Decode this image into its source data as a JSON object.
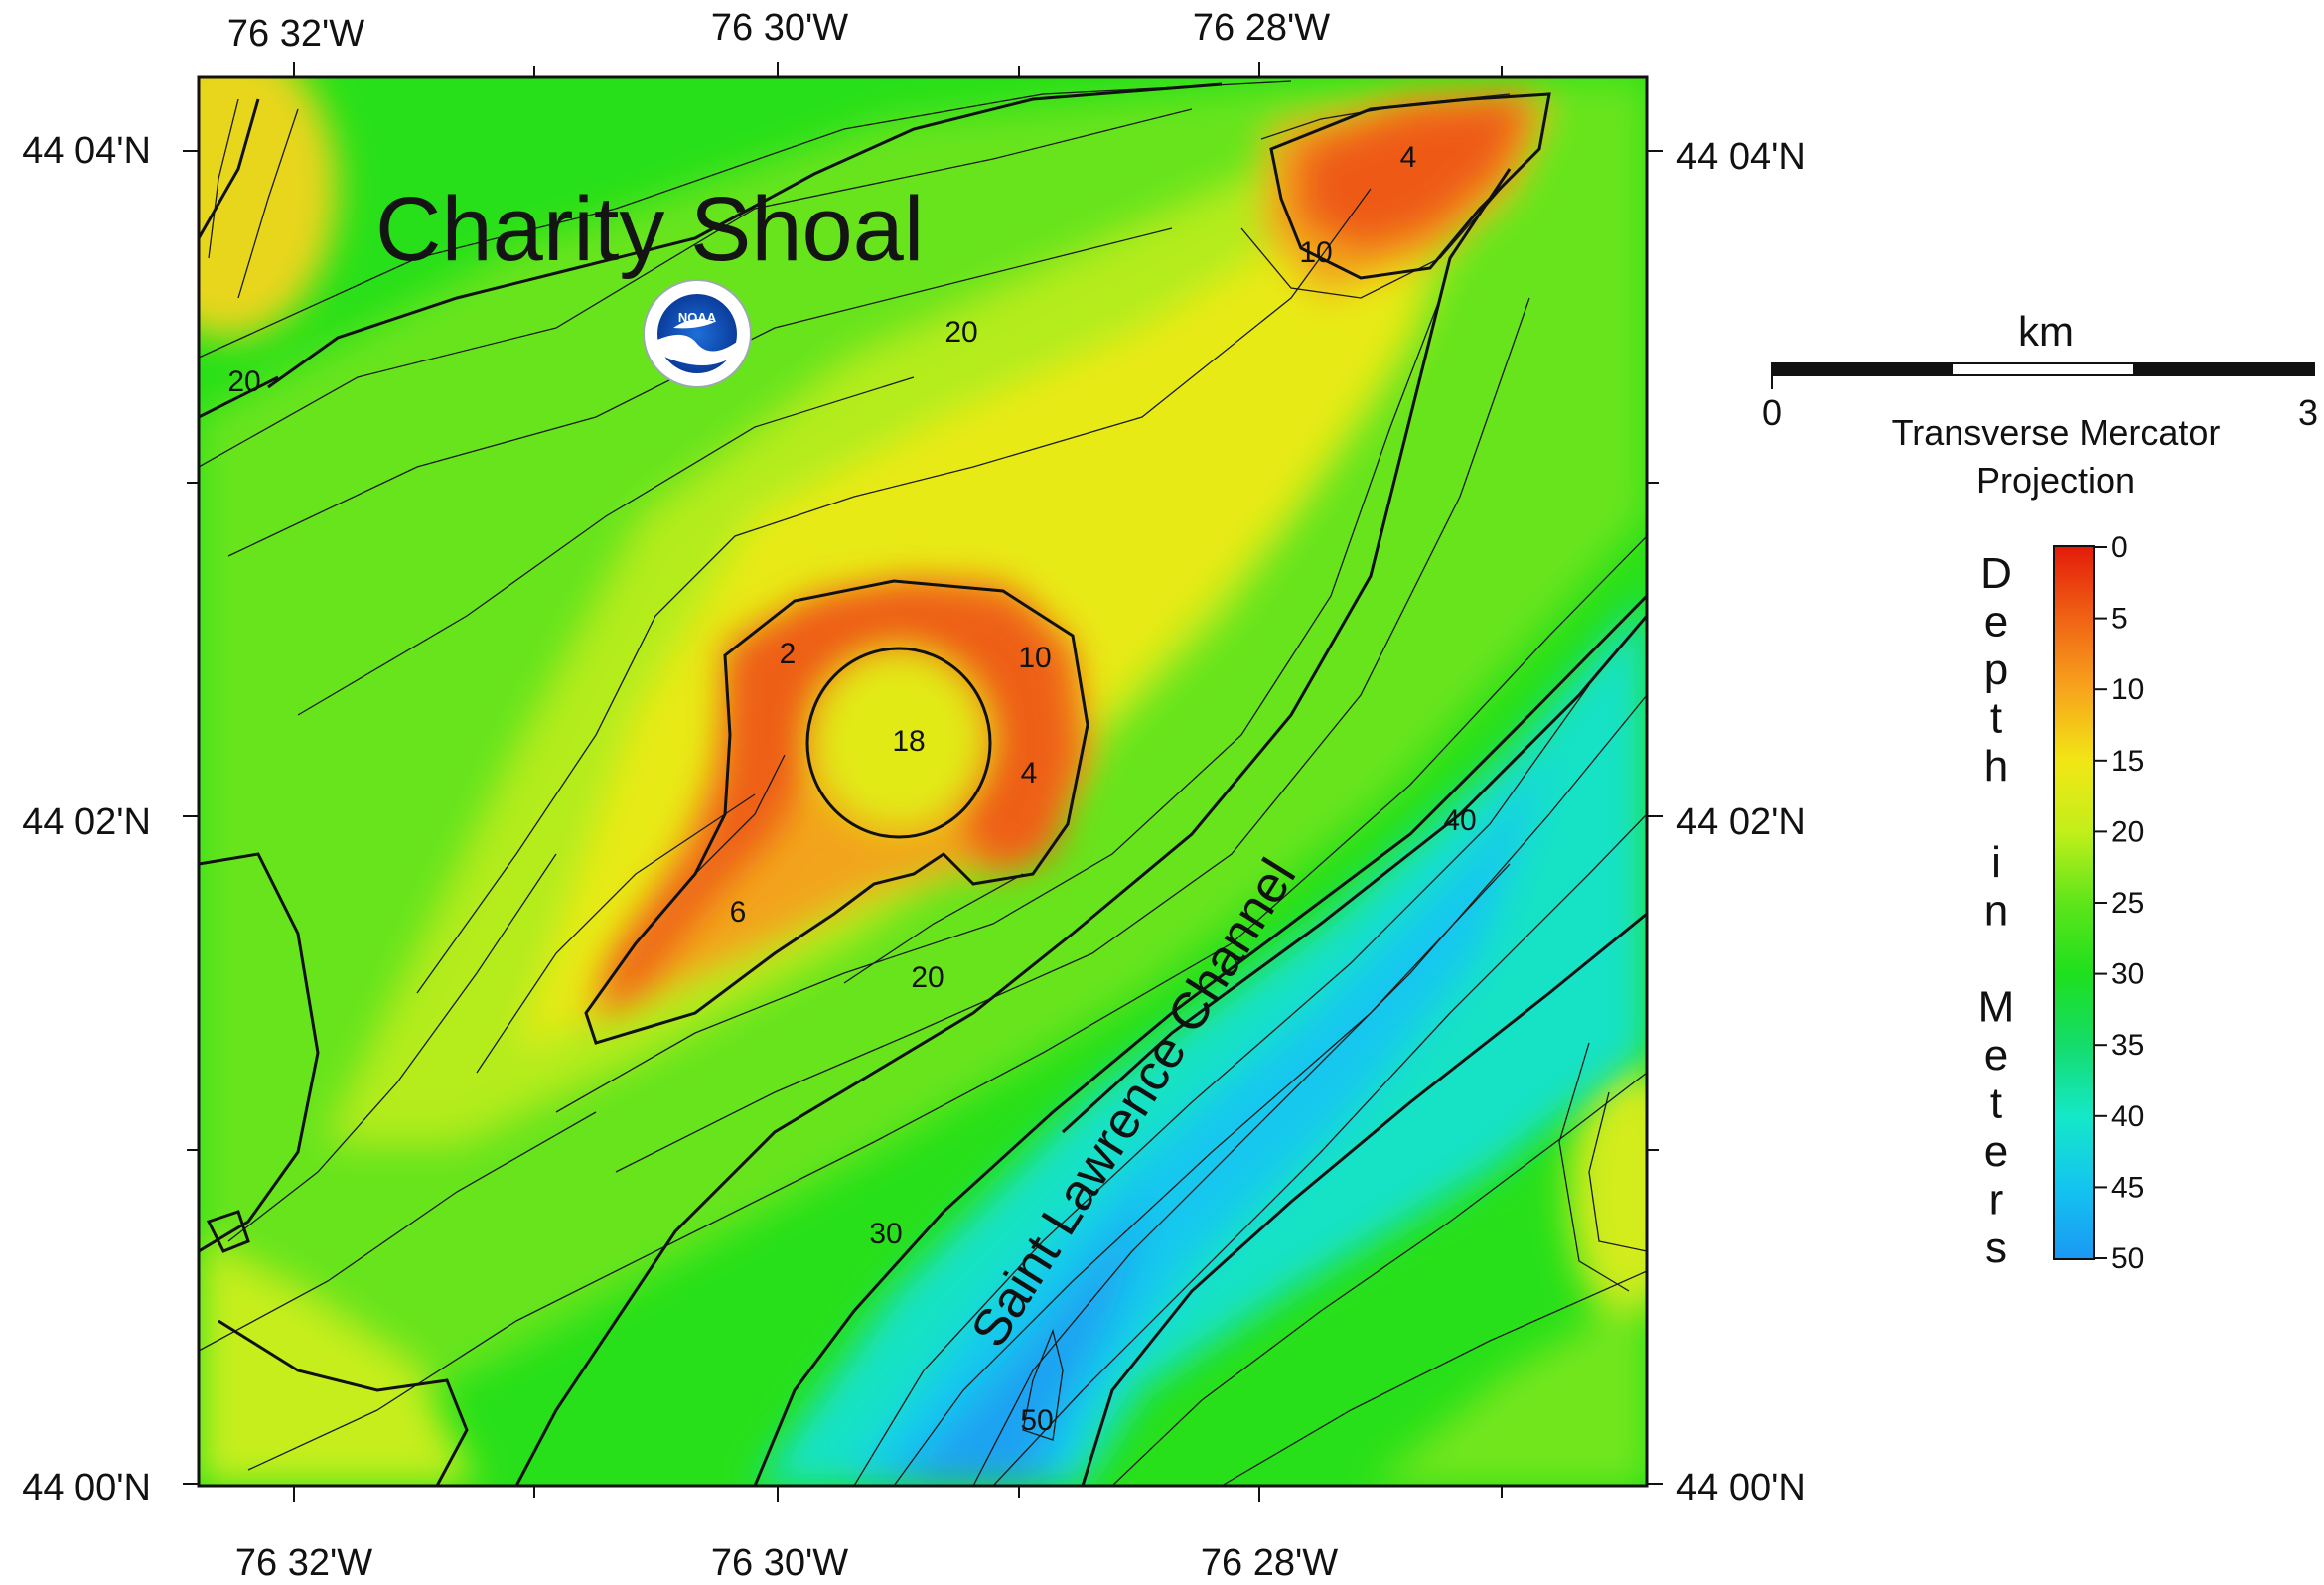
{
  "map": {
    "title": "Charity Shoal",
    "top_longitudes": [
      "76 32'W",
      "76 30'W",
      "76 28'W"
    ],
    "bottom_longitudes": [
      "76 32'W",
      "76 30'W",
      "76 28'W"
    ],
    "left_latitudes": [
      "44 04'N",
      "44 02'N",
      "44 00'N"
    ],
    "right_latitudes": [
      "44 04'N",
      "44 02'N",
      "44 00'N"
    ],
    "contour_labels": [
      {
        "text": "4",
        "key": "shoal-ne"
      },
      {
        "text": "10",
        "key": "shoal-ne"
      },
      {
        "text": "20",
        "key": "north-slope"
      },
      {
        "text": "20",
        "key": "west"
      },
      {
        "text": "2",
        "key": "rim-nw"
      },
      {
        "text": "10",
        "key": "rim-ne"
      },
      {
        "text": "18",
        "key": "crater"
      },
      {
        "text": "4",
        "key": "rim-e"
      },
      {
        "text": "6",
        "key": "ridge-sw"
      },
      {
        "text": "20",
        "key": "south-slope"
      },
      {
        "text": "40",
        "key": "channel-edge"
      },
      {
        "text": "30",
        "key": "channel-west"
      },
      {
        "text": "50",
        "key": "channel-floor"
      }
    ],
    "channel_label": "Saint Lawrence Channel",
    "logo_text": "NOAA"
  },
  "scale_bar": {
    "unit": "km",
    "start": "0",
    "end": "3",
    "projection_line1": "Transverse Mercator",
    "projection_line2": "Projection"
  },
  "legend": {
    "title_letters": [
      "D",
      "e",
      "p",
      "t",
      "h",
      "",
      "i",
      "n",
      "",
      "M",
      "e",
      "t",
      "e",
      "r",
      "s"
    ],
    "ticks": [
      "0",
      "5",
      "10",
      "15",
      "20",
      "25",
      "30",
      "35",
      "40",
      "45",
      "50"
    ],
    "colors": {
      "0": "#e31a0a",
      "5": "#f06214",
      "10": "#f7a41c",
      "15": "#f2e615",
      "20": "#c3ef1a",
      "25": "#5ee51a",
      "30": "#1ee01d",
      "35": "#14dc6c",
      "40": "#14e8c8",
      "45": "#14c4f0",
      "50": "#1a98f4"
    }
  }
}
